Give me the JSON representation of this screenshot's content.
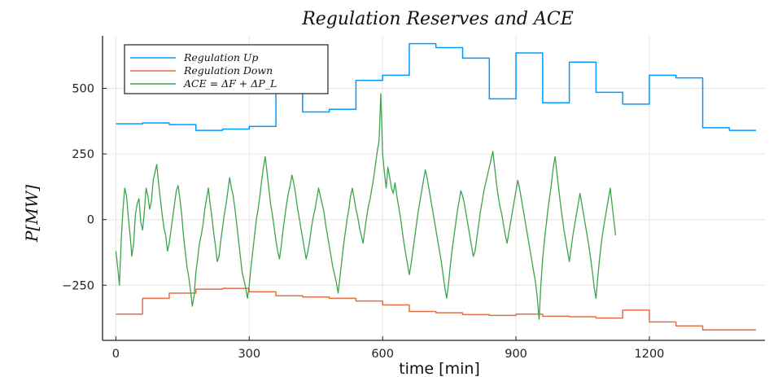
{
  "chart_data": {
    "type": "line",
    "title": "Regulation Reserves and ACE",
    "xlabel": "time [min]",
    "ylabel": "P[MW]",
    "xlim": [
      -30,
      1460
    ],
    "ylim": [
      -460,
      700
    ],
    "xticks": [
      0,
      300,
      600,
      900,
      1200
    ],
    "xtick_labels": [
      "0",
      "300",
      "600",
      "900",
      "1200"
    ],
    "yticks": [
      -250,
      0,
      250,
      500
    ],
    "ytick_labels": [
      "−250",
      "0",
      "250",
      "500"
    ],
    "grid": true,
    "legend_position": "top-left",
    "series": [
      {
        "name": "Regulation Up",
        "color": "#009AFA",
        "step": true,
        "x": [
          0,
          60,
          120,
          180,
          240,
          300,
          360,
          420,
          480,
          540,
          600,
          660,
          720,
          780,
          840,
          900,
          960,
          1020,
          1080,
          1140,
          1200,
          1260,
          1320,
          1380
        ],
        "values": [
          365,
          368,
          362,
          340,
          345,
          355,
          590,
          410,
          420,
          530,
          550,
          670,
          655,
          615,
          460,
          635,
          445,
          600,
          485,
          440,
          550,
          540,
          350,
          340
        ],
        "x_end": 1440
      },
      {
        "name": "Regulation Down",
        "color": "#E26F46",
        "step": true,
        "x": [
          0,
          60,
          120,
          180,
          240,
          300,
          360,
          420,
          480,
          540,
          600,
          660,
          720,
          780,
          840,
          900,
          960,
          1020,
          1080,
          1140,
          1200,
          1260,
          1320,
          1380
        ],
        "values": [
          -360,
          -300,
          -280,
          -265,
          -262,
          -275,
          -290,
          -295,
          -300,
          -310,
          -325,
          -350,
          -355,
          -362,
          -365,
          -360,
          -368,
          -370,
          -375,
          -345,
          -390,
          -405,
          -420,
          -420
        ],
        "x_end": 1440
      },
      {
        "name": "ACE = ΔF + ΔP_L",
        "color": "#3DA44D",
        "step": false,
        "x_start": 0,
        "x_step": 4,
        "values": [
          -120,
          -180,
          -250,
          -80,
          40,
          120,
          90,
          10,
          -60,
          -140,
          -90,
          20,
          60,
          80,
          -10,
          -40,
          30,
          120,
          90,
          40,
          70,
          150,
          180,
          210,
          140,
          80,
          20,
          -30,
          -60,
          -120,
          -90,
          -40,
          10,
          60,
          110,
          130,
          80,
          20,
          -60,
          -120,
          -180,
          -220,
          -270,
          -330,
          -290,
          -200,
          -150,
          -90,
          -60,
          -20,
          40,
          80,
          120,
          60,
          10,
          -50,
          -100,
          -160,
          -140,
          -80,
          -30,
          20,
          60,
          110,
          160,
          120,
          90,
          40,
          -20,
          -80,
          -140,
          -200,
          -230,
          -260,
          -300,
          -250,
          -180,
          -120,
          -60,
          0,
          40,
          90,
          150,
          200,
          240,
          180,
          120,
          60,
          20,
          -30,
          -80,
          -120,
          -150,
          -100,
          -40,
          10,
          60,
          100,
          130,
          170,
          140,
          100,
          50,
          10,
          -30,
          -70,
          -110,
          -150,
          -120,
          -80,
          -30,
          10,
          40,
          80,
          120,
          90,
          60,
          30,
          -20,
          -60,
          -100,
          -140,
          -180,
          -210,
          -240,
          -280,
          -220,
          -160,
          -100,
          -50,
          0,
          40,
          90,
          120,
          80,
          40,
          10,
          -30,
          -60,
          -90,
          -40,
          10,
          50,
          80,
          120,
          160,
          210,
          260,
          300,
          480,
          250,
          180,
          120,
          200,
          160,
          120,
          100,
          140,
          90,
          50,
          10,
          -40,
          -90,
          -130,
          -170,
          -210,
          -170,
          -120,
          -70,
          -20,
          30,
          70,
          110,
          150,
          190,
          160,
          120,
          80,
          40,
          0,
          -40,
          -80,
          -120,
          -160,
          -210,
          -260,
          -300,
          -250,
          -180,
          -120,
          -70,
          -20,
          30,
          70,
          110,
          90,
          60,
          20,
          -20,
          -60,
          -100,
          -140,
          -120,
          -70,
          -20,
          30,
          70,
          110,
          140,
          170,
          200,
          230,
          260,
          200,
          140,
          90,
          50,
          20,
          -20,
          -60,
          -90,
          -50,
          -10,
          30,
          70,
          110,
          150,
          120,
          80,
          40,
          0,
          -40,
          -80,
          -120,
          -160,
          -200,
          -240,
          -300,
          -380,
          -250,
          -150,
          -80,
          -20,
          40,
          90,
          140,
          200,
          240,
          180,
          120,
          60,
          10,
          -40,
          -80,
          -120,
          -160,
          -110,
          -60,
          -20,
          20,
          60,
          100,
          60,
          20,
          -20,
          -60,
          -100,
          -150,
          -200,
          -260,
          -300,
          -220,
          -150,
          -90,
          -40,
          0,
          40,
          80,
          120,
          60,
          0,
          -60
        ]
      }
    ]
  }
}
